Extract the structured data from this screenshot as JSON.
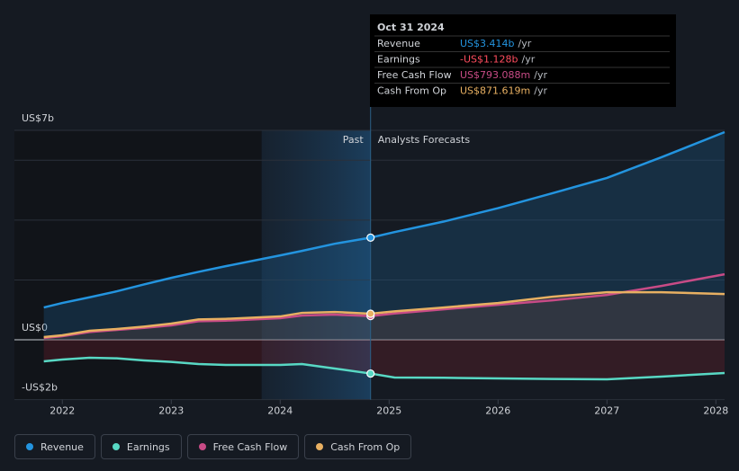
{
  "chart_data": {
    "type": "line",
    "x": [
      2021.83,
      2022,
      2022.25,
      2022.5,
      2022.75,
      2023,
      2023.25,
      2023.5,
      2024,
      2024.2,
      2024.5,
      2024.83,
      2025.05,
      2025.5,
      2026,
      2026.5,
      2027,
      2027.5,
      2028.08
    ],
    "series": [
      {
        "name": "Revenue",
        "color": "#2394df",
        "values": [
          1.08,
          1.23,
          1.42,
          1.62,
          1.85,
          2.07,
          2.27,
          2.46,
          2.82,
          2.97,
          3.21,
          3.414,
          3.6,
          3.95,
          4.4,
          4.9,
          5.41,
          6.1,
          6.94
        ]
      },
      {
        "name": "Earnings",
        "color": "#58d8c4",
        "values": [
          -0.72,
          -0.66,
          -0.6,
          -0.62,
          -0.69,
          -0.74,
          -0.81,
          -0.84,
          -0.84,
          -0.81,
          -0.96,
          -1.128,
          -1.26,
          -1.27,
          -1.29,
          -1.31,
          -1.32,
          -1.23,
          -1.11
        ]
      },
      {
        "name": "Free Cash Flow",
        "color": "#c84b86",
        "values": [
          0.06,
          0.12,
          0.26,
          0.33,
          0.4,
          0.48,
          0.62,
          0.64,
          0.72,
          0.81,
          0.84,
          0.793,
          0.88,
          1.02,
          1.17,
          1.32,
          1.5,
          1.8,
          2.19
        ]
      },
      {
        "name": "Cash From Op",
        "color": "#e8b062",
        "values": [
          0.09,
          0.15,
          0.3,
          0.36,
          0.44,
          0.54,
          0.68,
          0.7,
          0.78,
          0.9,
          0.93,
          0.872,
          0.95,
          1.08,
          1.23,
          1.44,
          1.59,
          1.59,
          1.53
        ]
      }
    ],
    "xlim": [
      2021.56,
      2028.08
    ],
    "xticks": [
      2022,
      2023,
      2024,
      2025,
      2026,
      2027,
      2028
    ],
    "ylim": [
      -2,
      7
    ],
    "yticks": [
      {
        "value": -2,
        "label": "-US$2b"
      },
      {
        "value": 0,
        "label": "US$0"
      },
      {
        "value": 7,
        "label": "US$7b"
      }
    ],
    "y_minor_ticks": [
      2,
      4,
      6
    ],
    "highlight_range": [
      2023.83,
      2024.83
    ],
    "past_label": "Past",
    "forecast_label": "Analysts Forecasts",
    "tooltip": {
      "date": "Oct 31 2024",
      "unit": "/yr",
      "values": [
        "US$3.414b",
        "-US$1.128b",
        "US$793.088m",
        "US$871.619m"
      ]
    }
  }
}
